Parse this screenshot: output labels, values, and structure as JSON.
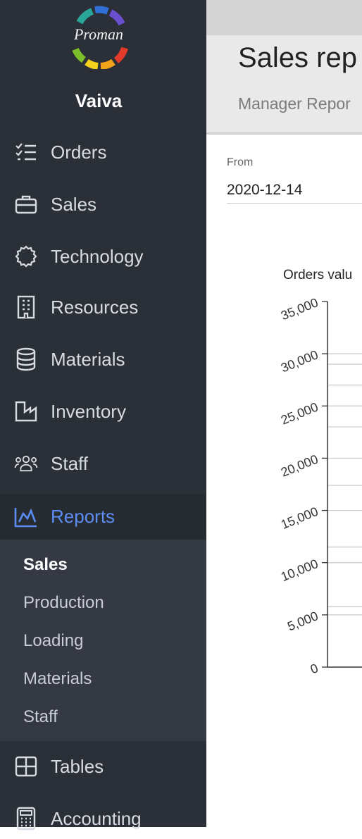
{
  "app": {
    "logo_text": "Proman",
    "user_name": "Vaiva"
  },
  "colors": {
    "sidebar_bg": "#2b2f37",
    "accent": "#5b8df3",
    "submenu_bg": "#353944"
  },
  "sidebar": {
    "items": [
      {
        "label": "Orders",
        "icon": "checklist-icon"
      },
      {
        "label": "Sales",
        "icon": "briefcase-icon"
      },
      {
        "label": "Technology",
        "icon": "gear-icon"
      },
      {
        "label": "Resources",
        "icon": "building-icon"
      },
      {
        "label": "Materials",
        "icon": "database-icon"
      },
      {
        "label": "Inventory",
        "icon": "factory-icon"
      },
      {
        "label": "Staff",
        "icon": "people-icon"
      },
      {
        "label": "Reports",
        "icon": "chart-icon",
        "active": true
      },
      {
        "label": "Tables",
        "icon": "table-icon"
      },
      {
        "label": "Accounting",
        "icon": "calculator-icon"
      }
    ],
    "reports_submenu": [
      {
        "label": "Sales",
        "active": true
      },
      {
        "label": "Production"
      },
      {
        "label": "Loading"
      },
      {
        "label": "Materials"
      },
      {
        "label": "Staff"
      }
    ]
  },
  "main": {
    "title": "Sales rep",
    "subtab": "Manager Repor",
    "filter": {
      "from_label": "From",
      "from_value": "2020-12-14"
    }
  },
  "chart_data": {
    "type": "bar",
    "title": "Orders valu",
    "y_ticks": [
      "0",
      "5,000",
      "10,000",
      "15,000",
      "20,000",
      "25,000",
      "30,000",
      "35,000"
    ],
    "ylim": [
      0,
      35000
    ],
    "gridlines": [
      5800,
      5000,
      11500,
      10000,
      17400,
      15000,
      23000,
      20000,
      27000,
      25000,
      29000,
      30000
    ]
  }
}
